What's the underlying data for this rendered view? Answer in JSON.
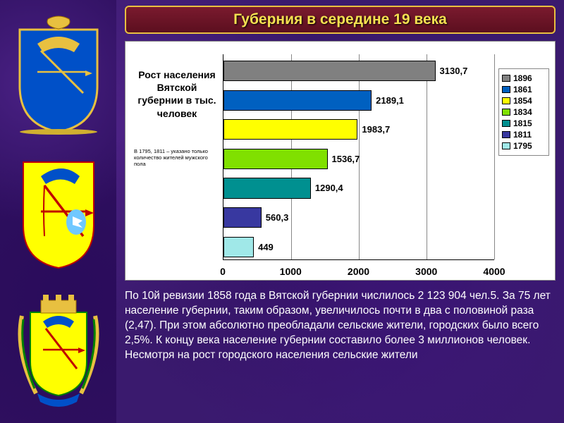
{
  "title": "Губерния в середине 19 века",
  "chart": {
    "type": "bar-horizontal",
    "title": "Рост населения Вятской губернии в тыс. человек",
    "note": "В 1795, 1811 – указано только количество жителей мужского пола",
    "background_color": "#ffffff",
    "grid_color": "#888888",
    "axis_color": "#000000",
    "x_min": 0,
    "x_max": 4000,
    "x_step": 1000,
    "x_ticks": [
      "0",
      "1000",
      "2000",
      "3000",
      "4000"
    ],
    "label_fontsize": 13,
    "tick_fontsize": 14,
    "series": [
      {
        "year": "1896",
        "value": 3130.7,
        "label": "3130,7",
        "color": "#808080"
      },
      {
        "year": "1861",
        "value": 2189.1,
        "label": "2189,1",
        "color": "#0060c0"
      },
      {
        "year": "1854",
        "value": 1983.7,
        "label": "1983,7",
        "color": "#ffff00"
      },
      {
        "year": "1834",
        "value": 1536.7,
        "label": "1536,7",
        "color": "#80e000"
      },
      {
        "year": "1815",
        "value": 1290.4,
        "label": "1290,4",
        "color": "#009090"
      },
      {
        "year": "1811",
        "value": 560.3,
        "label": "560,3",
        "color": "#3838a0"
      },
      {
        "year": "1795",
        "value": 449,
        "label": "449",
        "color": "#a0e8e8"
      }
    ],
    "legend_order": [
      "1896",
      "1861",
      "1854",
      "1834",
      "1815",
      "1811",
      "1795"
    ]
  },
  "body_text": "По 10й ревизии 1858 года в Вятской губернии числилось 2 123 904 чел.5. За 75 лет население губернии, таким образом, увеличилось почти в два с половиной раза (2,47). При этом абсолютно преобладали сельские жители, городских было всего 2,5%.  К концу века население губернии составило более 3 миллионов человек. Несмотря на рост городского населения сельские жители",
  "colors": {
    "slide_bg": "#3a1a6e",
    "title_box_border": "#e8c040",
    "title_text": "#f5e050",
    "body_text": "#ffffff"
  }
}
